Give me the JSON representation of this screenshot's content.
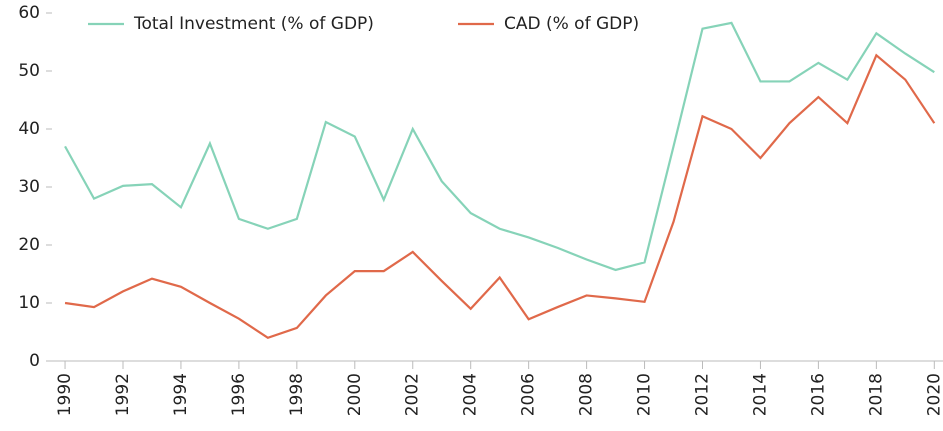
{
  "chart_data": {
    "type": "line",
    "x": [
      1990,
      1991,
      1992,
      1993,
      1994,
      1995,
      1996,
      1997,
      1998,
      1999,
      2000,
      2001,
      2002,
      2003,
      2004,
      2005,
      2006,
      2007,
      2008,
      2009,
      2010,
      2011,
      2012,
      2013,
      2014,
      2015,
      2016,
      2017,
      2018,
      2019,
      2020
    ],
    "series": [
      {
        "name": "Total Investment (% of GDP)",
        "color": "#86d3b8",
        "values": [
          37,
          28,
          30.2,
          30.5,
          26.5,
          37.5,
          24.5,
          22.8,
          24.5,
          41.2,
          38.7,
          27.8,
          40,
          31,
          25.5,
          22.8,
          21.3,
          19.5,
          17.5,
          15.7,
          17,
          37,
          57.3,
          58.3,
          48.2,
          48.2,
          51.4,
          48.5,
          56.5,
          53,
          49.8
        ]
      },
      {
        "name": "CAD (% of GDP)",
        "color": "#e0694a",
        "values": [
          10,
          9.3,
          12,
          14.2,
          12.8,
          10,
          7.3,
          4,
          5.7,
          11.3,
          15.5,
          15.5,
          18.8,
          13.8,
          9,
          14.4,
          7.2,
          9.3,
          11.3,
          10.8,
          10.2,
          24,
          42.2,
          40,
          35,
          41,
          45.5,
          41,
          52.7,
          48.5,
          41
        ]
      }
    ],
    "xlim": [
      1989.55,
      2020.3
    ],
    "xticks": [
      1990,
      1992,
      1994,
      1996,
      1998,
      2000,
      2002,
      2004,
      2006,
      2008,
      2010,
      2012,
      2014,
      2016,
      2018,
      2020
    ],
    "ylim": [
      0,
      60
    ],
    "yticks": [
      0,
      10,
      20,
      30,
      40,
      50,
      60
    ],
    "legend": "top"
  }
}
